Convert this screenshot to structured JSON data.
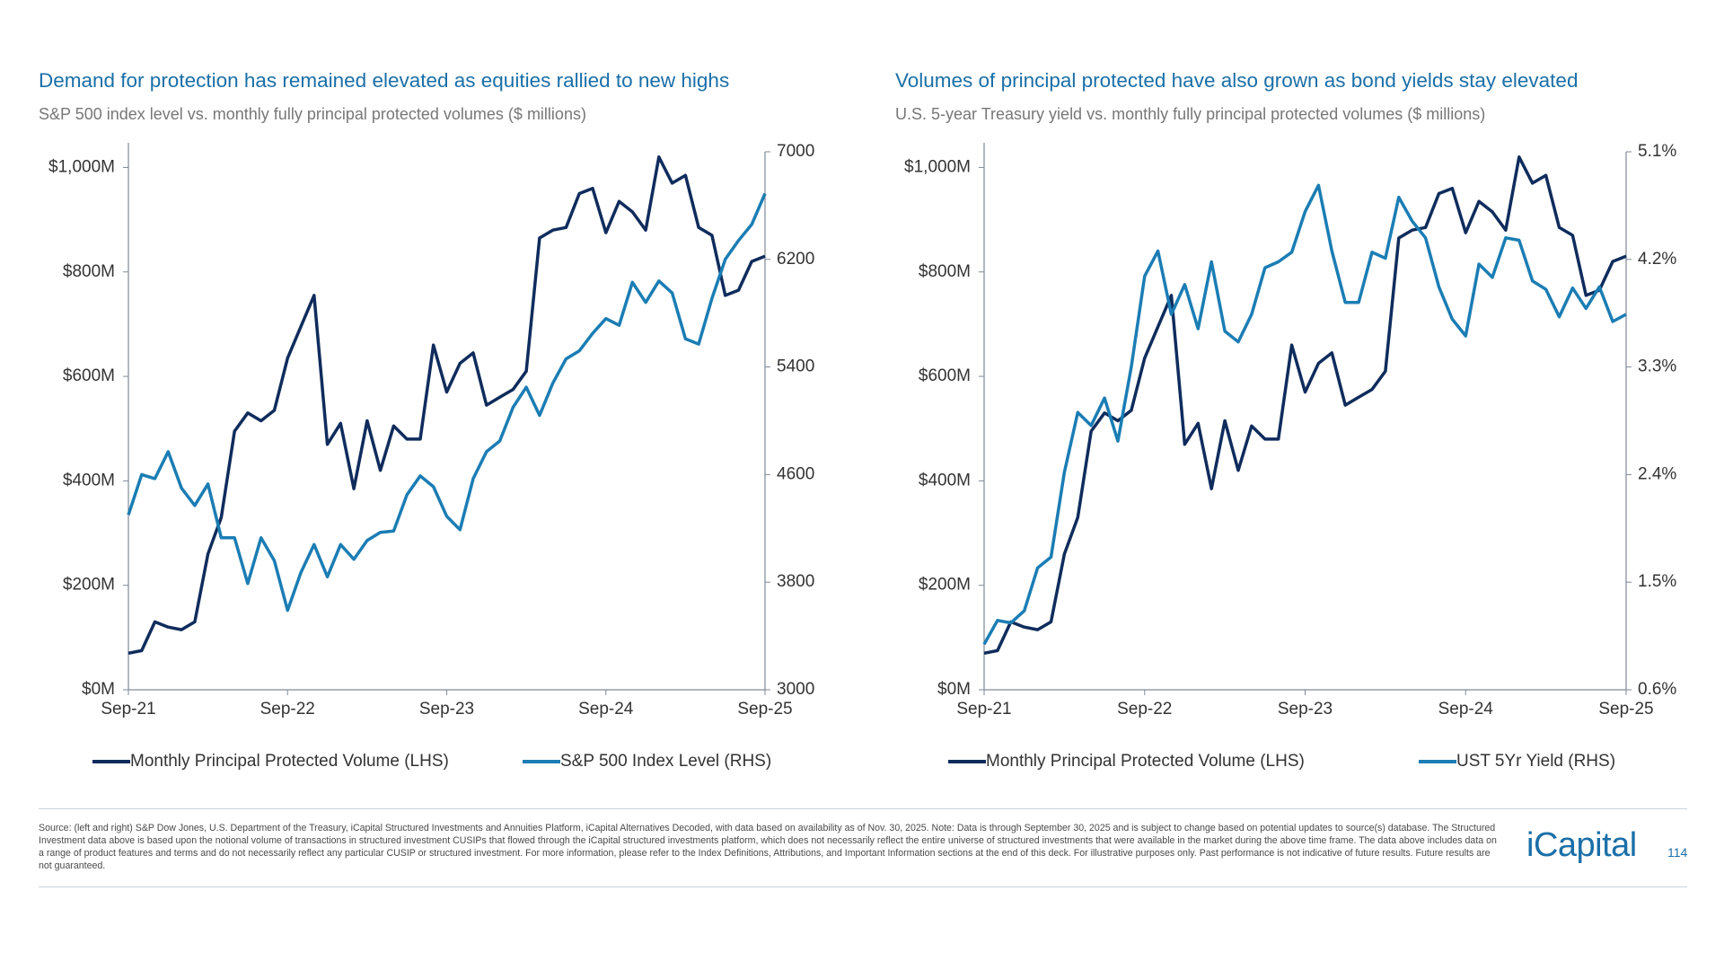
{
  "chart_data": [
    {
      "type": "line",
      "title": "Demand for protection has remained elevated as equities rallied to new highs",
      "subtitle": "S&P 500 index level vs. monthly fully principal protected volumes ($ millions)",
      "x": [
        "2021-09",
        "2021-10",
        "2021-11",
        "2021-12",
        "2022-01",
        "2022-02",
        "2022-03",
        "2022-04",
        "2022-05",
        "2022-06",
        "2022-07",
        "2022-08",
        "2022-09",
        "2022-10",
        "2022-11",
        "2022-12",
        "2023-01",
        "2023-02",
        "2023-03",
        "2023-04",
        "2023-05",
        "2023-06",
        "2023-07",
        "2023-08",
        "2023-09",
        "2023-10",
        "2023-11",
        "2023-12",
        "2024-01",
        "2024-02",
        "2024-03",
        "2024-04",
        "2024-05",
        "2024-06",
        "2024-07",
        "2024-08",
        "2024-09",
        "2024-10",
        "2024-11",
        "2024-12",
        "2025-01",
        "2025-02",
        "2025-03",
        "2025-04",
        "2025-05",
        "2025-06",
        "2025-07",
        "2025-08",
        "2025-09"
      ],
      "xticks": [
        {
          "value": "2021-09",
          "label": "Sep-21"
        },
        {
          "value": "2022-09",
          "label": "Sep-22"
        },
        {
          "value": "2023-09",
          "label": "Sep-23"
        },
        {
          "value": "2024-09",
          "label": "Sep-24"
        },
        {
          "value": "2025-09",
          "label": "Sep-25"
        }
      ],
      "ylim": [
        0,
        1030
      ],
      "yticks": [
        {
          "value": 0,
          "label": "$0M"
        },
        {
          "value": 200,
          "label": "$200M"
        },
        {
          "value": 400,
          "label": "$400M"
        },
        {
          "value": 600,
          "label": "$600M"
        },
        {
          "value": 800,
          "label": "$800M"
        },
        {
          "value": 1000,
          "label": "$1,000M"
        }
      ],
      "y2lim": [
        3000,
        7000
      ],
      "y2ticks": [
        3000,
        3800,
        4600,
        5400,
        6200,
        7000
      ],
      "series": [
        {
          "name": "Monthly Principal Protected Volume (LHS)",
          "color": "#0f2c5c",
          "values": [
            70,
            75,
            130,
            120,
            115,
            130,
            260,
            330,
            495,
            530,
            515,
            535,
            635,
            695,
            755,
            470,
            510,
            385,
            515,
            420,
            505,
            480,
            480,
            660,
            570,
            625,
            645,
            545,
            560,
            575,
            610,
            865,
            880,
            885,
            950,
            960,
            875,
            935,
            915,
            880,
            1020,
            970,
            985,
            885,
            870,
            755,
            765,
            820,
            830
          ]
        },
        {
          "name": "S&P 500 Index Level (RHS)",
          "color": "#1b7db4",
          "axis": "y2",
          "values": [
            4300,
            4600,
            4570,
            4770,
            4500,
            4370,
            4530,
            4130,
            4130,
            3790,
            4130,
            3960,
            3590,
            3870,
            4080,
            3840,
            4080,
            3970,
            4110,
            4170,
            4180,
            4450,
            4590,
            4510,
            4290,
            4190,
            4570,
            4770,
            4850,
            5100,
            5250,
            5040,
            5280,
            5460,
            5520,
            5650,
            5760,
            5710,
            6030,
            5880,
            6040,
            5950,
            5610,
            5570,
            5910,
            6200,
            6340,
            6460,
            6690
          ]
        }
      ]
    },
    {
      "type": "line",
      "title": "Volumes of principal protected have also grown as bond yields stay elevated",
      "subtitle": "U.S. 5-year Treasury yield vs. monthly fully principal protected volumes ($ millions)",
      "x": [
        "2021-09",
        "2021-10",
        "2021-11",
        "2021-12",
        "2022-01",
        "2022-02",
        "2022-03",
        "2022-04",
        "2022-05",
        "2022-06",
        "2022-07",
        "2022-08",
        "2022-09",
        "2022-10",
        "2022-11",
        "2022-12",
        "2023-01",
        "2023-02",
        "2023-03",
        "2023-04",
        "2023-05",
        "2023-06",
        "2023-07",
        "2023-08",
        "2023-09",
        "2023-10",
        "2023-11",
        "2023-12",
        "2024-01",
        "2024-02",
        "2024-03",
        "2024-04",
        "2024-05",
        "2024-06",
        "2024-07",
        "2024-08",
        "2024-09",
        "2024-10",
        "2024-11",
        "2024-12",
        "2025-01",
        "2025-02",
        "2025-03",
        "2025-04",
        "2025-05",
        "2025-06",
        "2025-07",
        "2025-08",
        "2025-09"
      ],
      "xticks": [
        {
          "value": "2021-09",
          "label": "Sep-21"
        },
        {
          "value": "2022-09",
          "label": "Sep-22"
        },
        {
          "value": "2023-09",
          "label": "Sep-23"
        },
        {
          "value": "2024-09",
          "label": "Sep-24"
        },
        {
          "value": "2025-09",
          "label": "Sep-25"
        }
      ],
      "ylim": [
        0,
        1030
      ],
      "yticks": [
        {
          "value": 0,
          "label": "$0M"
        },
        {
          "value": 200,
          "label": "$200M"
        },
        {
          "value": 400,
          "label": "$400M"
        },
        {
          "value": 600,
          "label": "$600M"
        },
        {
          "value": 800,
          "label": "$800M"
        },
        {
          "value": 1000,
          "label": "$1,000M"
        }
      ],
      "y2lim": [
        0.6,
        5.1
      ],
      "y2ticks": [
        {
          "value": 0.6,
          "label": "0.6%"
        },
        {
          "value": 1.5,
          "label": "1.5%"
        },
        {
          "value": 2.4,
          "label": "2.4%"
        },
        {
          "value": 3.3,
          "label": "3.3%"
        },
        {
          "value": 4.2,
          "label": "4.2%"
        },
        {
          "value": 5.1,
          "label": "5.1%"
        }
      ],
      "series": [
        {
          "name": "Monthly Principal Protected Volume (LHS)",
          "color": "#0f2c5c",
          "values": [
            70,
            75,
            130,
            120,
            115,
            130,
            260,
            330,
            495,
            530,
            515,
            535,
            635,
            695,
            755,
            470,
            510,
            385,
            515,
            420,
            505,
            480,
            480,
            660,
            570,
            625,
            645,
            545,
            560,
            575,
            610,
            865,
            880,
            885,
            950,
            960,
            875,
            935,
            915,
            880,
            1020,
            970,
            985,
            885,
            870,
            755,
            765,
            820,
            830
          ]
        },
        {
          "name": "UST 5Yr Yield (RHS)",
          "color": "#1b7db4",
          "axis": "y2",
          "values": [
            0.98,
            1.18,
            1.16,
            1.26,
            1.62,
            1.71,
            2.42,
            2.92,
            2.81,
            3.04,
            2.68,
            3.3,
            4.06,
            4.27,
            3.74,
            3.99,
            3.62,
            4.18,
            3.6,
            3.51,
            3.74,
            4.13,
            4.18,
            4.26,
            4.6,
            4.82,
            4.27,
            3.84,
            3.84,
            4.26,
            4.21,
            4.72,
            4.52,
            4.38,
            3.97,
            3.7,
            3.56,
            4.16,
            4.05,
            4.38,
            4.36,
            4.02,
            3.95,
            3.72,
            3.96,
            3.79,
            3.97,
            3.68,
            3.74
          ]
        }
      ]
    }
  ],
  "footer": {
    "source": "Source: (left and right) S&P Dow Jones, U.S. Department of the Treasury, iCapital Structured Investments and Annuities Platform, iCapital Alternatives Decoded, with data based on availability as of Nov. 30, 2025. Note: Data is through September 30, 2025 and is subject to change based on potential updates to source(s) database. The Structured Investment data above is based upon the notional volume of transactions in structured investment CUSIPs that flowed through the iCapital structured investments platform, which does not necessarily reflect the entire universe of structured investments that were available in the market during the above time frame. The data above includes data on a range of product features and terms and do not necessarily reflect any particular CUSIP or structured investment. For more information, please refer to the Index Definitions, Attributions, and Important Information sections at the end of this deck. For illustrative purposes only. Past performance is not indicative of future results. Future results are not guaranteed.",
    "logo": "iCapital",
    "page_number": 114
  }
}
